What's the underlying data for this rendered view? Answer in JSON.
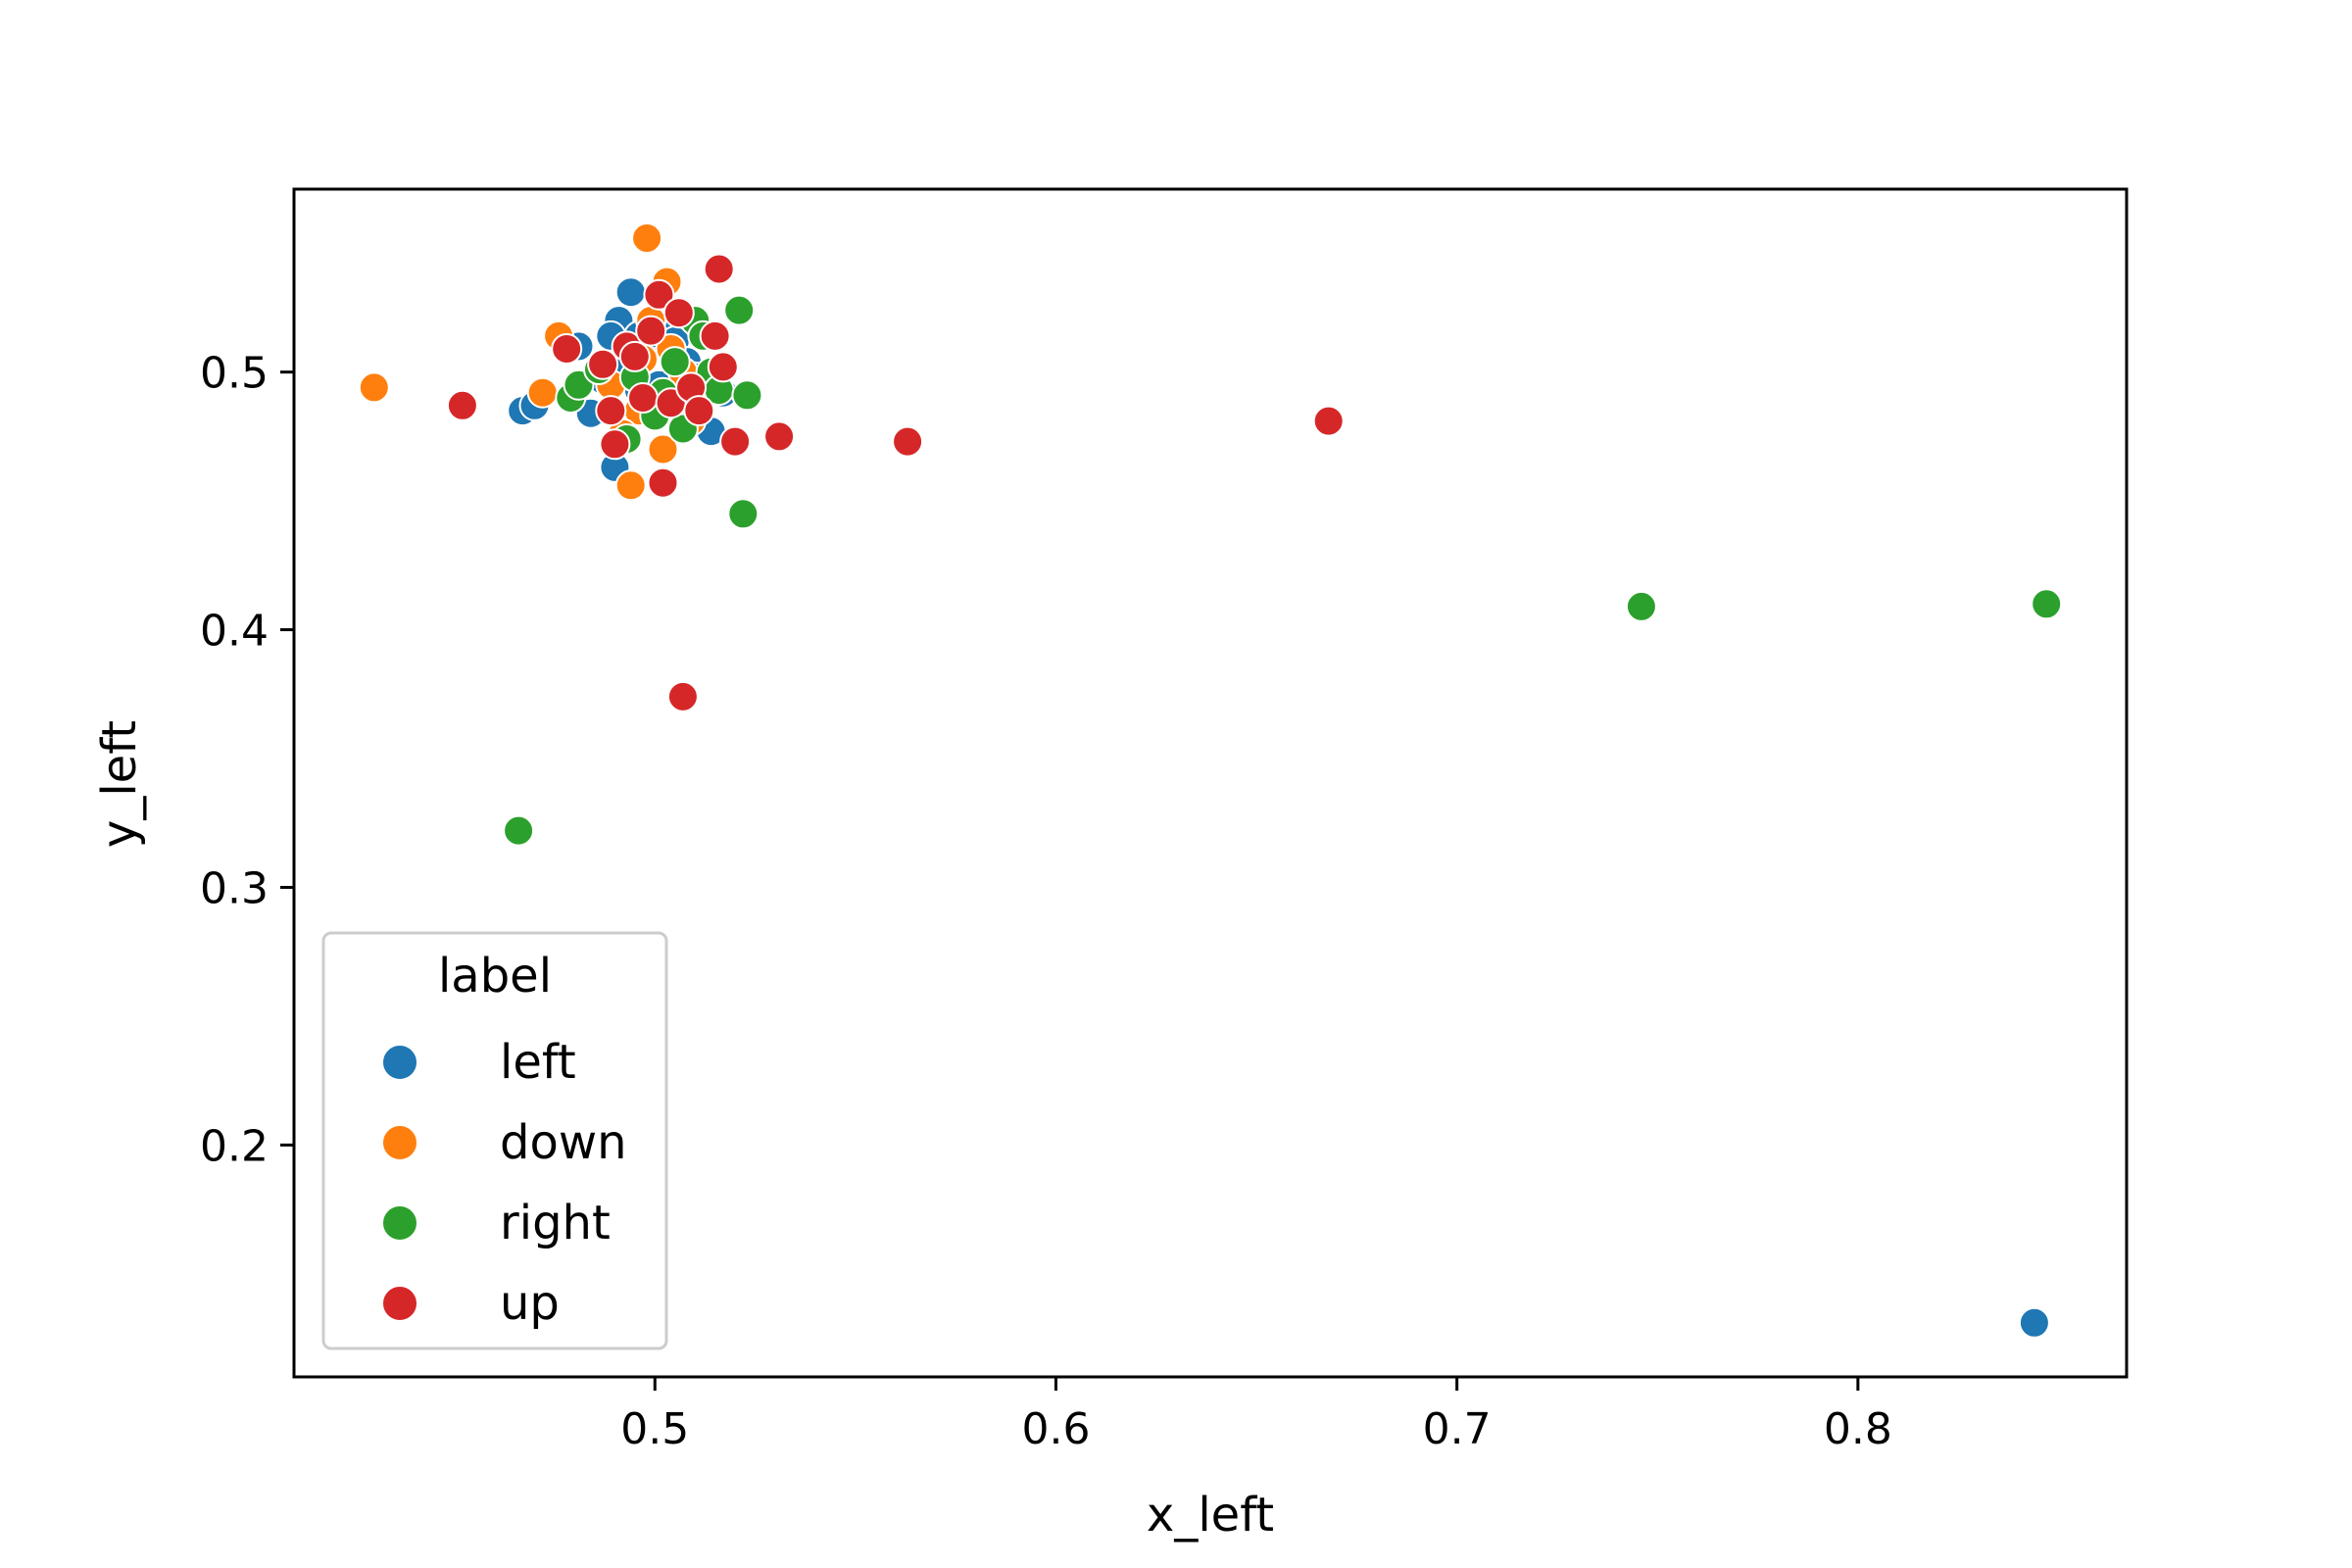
{
  "chart_data": {
    "type": "scatter",
    "title": "",
    "xlabel": "x_left",
    "ylabel": "y_left",
    "xlim": [
      0.41,
      0.867
    ],
    "ylim": [
      0.11,
      0.571
    ],
    "xticks": [
      0.5,
      0.6,
      0.7,
      0.8
    ],
    "xtick_labels": [
      "0.5",
      "0.6",
      "0.7",
      "0.8"
    ],
    "yticks": [
      0.2,
      0.3,
      0.4,
      0.5
    ],
    "ytick_labels": [
      "0.2",
      "0.3",
      "0.4",
      "0.5"
    ],
    "grid": false,
    "legend": {
      "title": "label",
      "placement": "lower-left"
    },
    "series": [
      {
        "name": "left",
        "color": "#1f77b4",
        "points": [
          [
            0.467,
            0.485
          ],
          [
            0.47,
            0.487
          ],
          [
            0.484,
            0.484
          ],
          [
            0.487,
            0.497
          ],
          [
            0.49,
            0.463
          ],
          [
            0.491,
            0.52
          ],
          [
            0.493,
            0.502
          ],
          [
            0.494,
            0.531
          ],
          [
            0.496,
            0.493
          ],
          [
            0.498,
            0.51
          ],
          [
            0.5,
            0.515
          ],
          [
            0.501,
            0.495
          ],
          [
            0.503,
            0.518
          ],
          [
            0.505,
            0.512
          ],
          [
            0.508,
            0.504
          ],
          [
            0.51,
            0.498
          ],
          [
            0.514,
            0.477
          ],
          [
            0.517,
            0.492
          ],
          [
            0.481,
            0.51
          ],
          [
            0.496,
            0.514
          ],
          [
            0.489,
            0.514
          ],
          [
            0.844,
            0.131
          ]
        ]
      },
      {
        "name": "down",
        "color": "#ff7f0e",
        "points": [
          [
            0.43,
            0.494
          ],
          [
            0.472,
            0.492
          ],
          [
            0.476,
            0.514
          ],
          [
            0.489,
            0.495
          ],
          [
            0.494,
            0.456
          ],
          [
            0.496,
            0.485
          ],
          [
            0.498,
            0.552
          ],
          [
            0.499,
            0.52
          ],
          [
            0.502,
            0.47
          ],
          [
            0.503,
            0.535
          ],
          [
            0.504,
            0.509
          ],
          [
            0.507,
            0.5
          ],
          [
            0.509,
            0.481
          ],
          [
            0.497,
            0.505
          ],
          [
            0.492,
            0.476
          ]
        ]
      },
      {
        "name": "right",
        "color": "#2ca02c",
        "points": [
          [
            0.466,
            0.322
          ],
          [
            0.479,
            0.49
          ],
          [
            0.481,
            0.495
          ],
          [
            0.486,
            0.501
          ],
          [
            0.493,
            0.474
          ],
          [
            0.495,
            0.498
          ],
          [
            0.5,
            0.483
          ],
          [
            0.502,
            0.492
          ],
          [
            0.505,
            0.504
          ],
          [
            0.51,
            0.52
          ],
          [
            0.512,
            0.514
          ],
          [
            0.514,
            0.5
          ],
          [
            0.516,
            0.493
          ],
          [
            0.521,
            0.524
          ],
          [
            0.522,
            0.445
          ],
          [
            0.523,
            0.491
          ],
          [
            0.507,
            0.478
          ],
          [
            0.746,
            0.409
          ],
          [
            0.847,
            0.41
          ]
        ]
      },
      {
        "name": "up",
        "color": "#d62728",
        "points": [
          [
            0.452,
            0.487
          ],
          [
            0.478,
            0.509
          ],
          [
            0.487,
            0.503
          ],
          [
            0.489,
            0.485
          ],
          [
            0.49,
            0.472
          ],
          [
            0.493,
            0.51
          ],
          [
            0.495,
            0.506
          ],
          [
            0.497,
            0.49
          ],
          [
            0.499,
            0.516
          ],
          [
            0.501,
            0.53
          ],
          [
            0.502,
            0.457
          ],
          [
            0.504,
            0.488
          ],
          [
            0.506,
            0.523
          ],
          [
            0.507,
            0.374
          ],
          [
            0.509,
            0.494
          ],
          [
            0.511,
            0.485
          ],
          [
            0.515,
            0.514
          ],
          [
            0.516,
            0.54
          ],
          [
            0.517,
            0.502
          ],
          [
            0.52,
            0.473
          ],
          [
            0.531,
            0.475
          ],
          [
            0.563,
            0.473
          ],
          [
            0.668,
            0.481
          ]
        ]
      }
    ]
  }
}
